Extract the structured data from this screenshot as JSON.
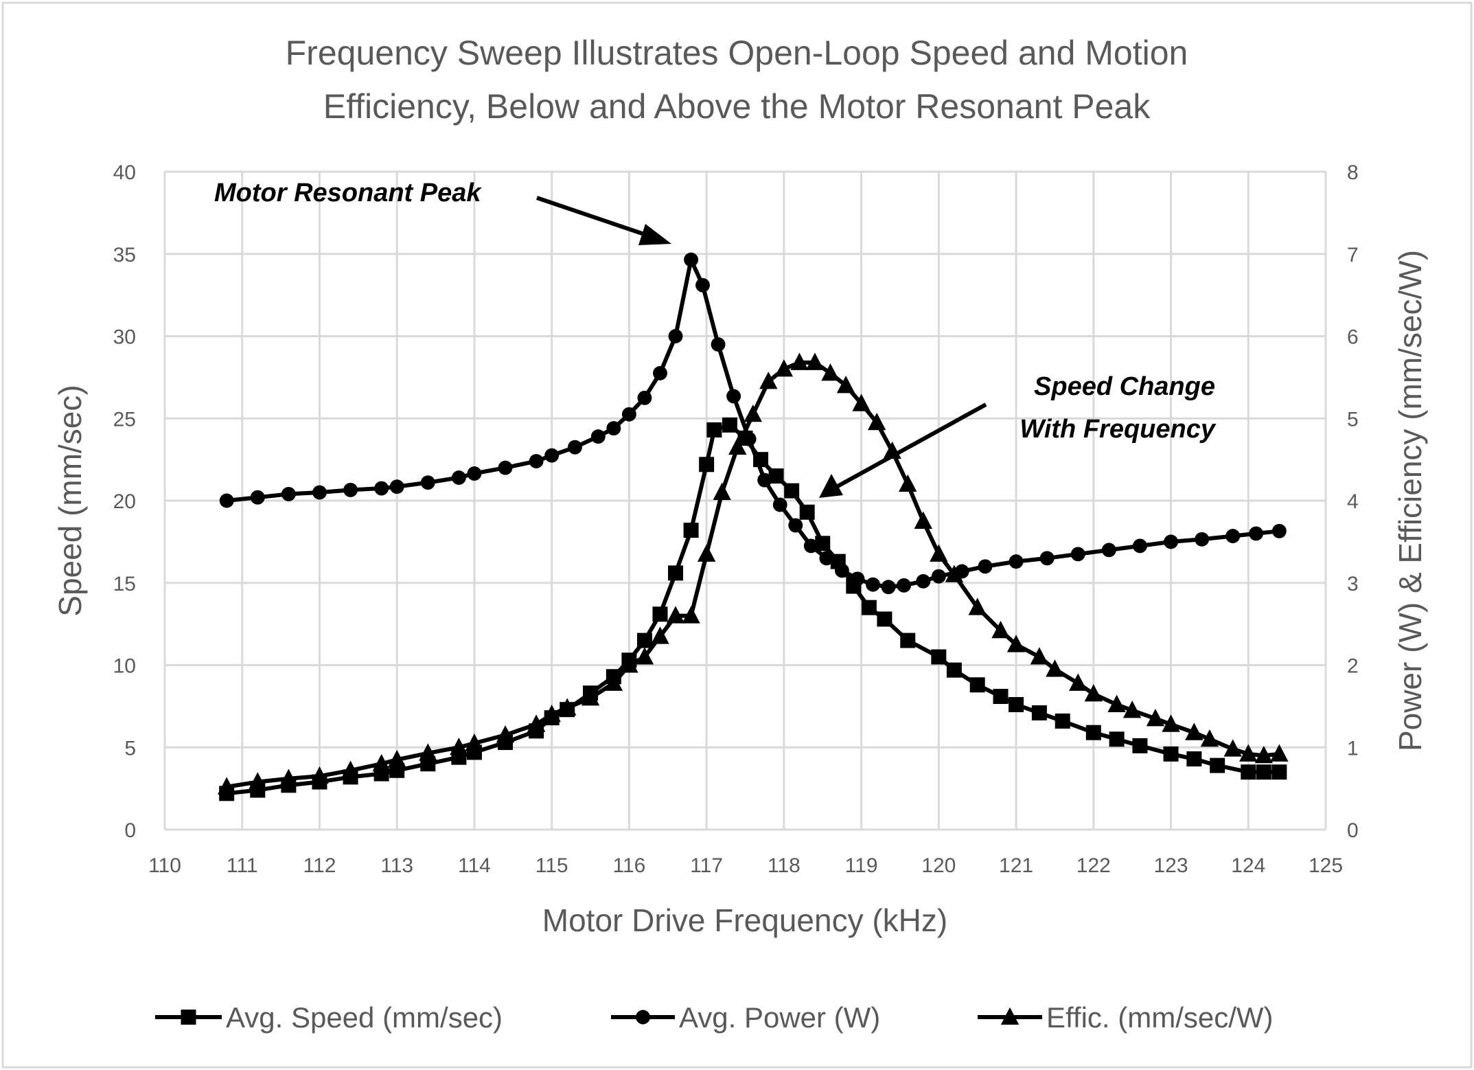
{
  "chart_data": {
    "type": "line",
    "title": [
      "Frequency Sweep Illustrates Open-Loop Speed and Motion",
      "Efficiency, Below and Above the Motor Resonant Peak"
    ],
    "xlabel": "Motor Drive Frequency (kHz)",
    "ylabel": "Speed (mm/sec)",
    "y2label": "Power (W) & Efficiency (mm/sec/W)",
    "xlim": [
      110,
      125
    ],
    "ylim": [
      0,
      40
    ],
    "y2lim": [
      0,
      8
    ],
    "x_ticks": [
      "110",
      "111",
      "112",
      "113",
      "114",
      "115",
      "116",
      "117",
      "118",
      "119",
      "120",
      "121",
      "122",
      "123",
      "124",
      "125"
    ],
    "y_ticks": [
      "0",
      "5",
      "10",
      "15",
      "20",
      "25",
      "30",
      "35",
      "40"
    ],
    "y2_ticks": [
      "0",
      "1",
      "2",
      "3",
      "4",
      "5",
      "6",
      "7",
      "8"
    ],
    "grid": true,
    "legend_position": "bottom",
    "series": [
      {
        "name": "Avg. Speed (mm/sec)",
        "marker": "square",
        "axis": "left",
        "x": [
          110.8,
          111.2,
          111.6,
          112,
          112.4,
          112.8,
          113,
          113.4,
          113.8,
          114,
          114.4,
          114.8,
          115,
          115.2,
          115.5,
          115.8,
          116,
          116.2,
          116.4,
          116.6,
          116.8,
          117,
          117.1,
          117.3,
          117.5,
          117.7,
          117.9,
          118.1,
          118.3,
          118.5,
          118.7,
          118.9,
          119.1,
          119.3,
          119.6,
          120,
          120.2,
          120.5,
          120.8,
          121,
          121.3,
          121.6,
          122,
          122.3,
          122.6,
          123,
          123.3,
          123.6,
          124,
          124.2,
          124.4
        ],
        "values": [
          2.2,
          2.4,
          2.7,
          2.9,
          3.2,
          3.4,
          3.6,
          4.0,
          4.4,
          4.7,
          5.3,
          6.0,
          6.8,
          7.3,
          8.3,
          9.3,
          10.3,
          11.5,
          13.1,
          15.6,
          18.2,
          22.2,
          24.3,
          24.6,
          23.8,
          22.5,
          21.5,
          20.6,
          19.3,
          17.4,
          16.3,
          14.8,
          13.5,
          12.8,
          11.5,
          10.5,
          9.7,
          8.8,
          8.1,
          7.6,
          7.1,
          6.6,
          5.9,
          5.5,
          5.1,
          4.6,
          4.3,
          3.9,
          3.5,
          3.5,
          3.5
        ]
      },
      {
        "name": "Avg. Power (W)",
        "marker": "circle",
        "axis": "right",
        "x": [
          110.8,
          111.2,
          111.6,
          112,
          112.4,
          112.8,
          113,
          113.4,
          113.8,
          114,
          114.4,
          114.8,
          115,
          115.3,
          115.6,
          115.8,
          116,
          116.2,
          116.4,
          116.6,
          116.8,
          116.95,
          117.15,
          117.35,
          117.55,
          117.75,
          117.95,
          118.15,
          118.35,
          118.55,
          118.75,
          118.95,
          119.15,
          119.35,
          119.55,
          119.8,
          120,
          120.3,
          120.6,
          121,
          121.4,
          121.8,
          122.2,
          122.6,
          123,
          123.4,
          123.8,
          124.1,
          124.4
        ],
        "values": [
          4.0,
          4.04,
          4.08,
          4.1,
          4.13,
          4.15,
          4.17,
          4.22,
          4.28,
          4.33,
          4.4,
          4.48,
          4.55,
          4.65,
          4.78,
          4.88,
          5.05,
          5.25,
          5.55,
          6.0,
          6.93,
          6.62,
          5.9,
          5.27,
          4.75,
          4.25,
          3.95,
          3.7,
          3.45,
          3.3,
          3.15,
          3.05,
          2.98,
          2.95,
          2.97,
          3.02,
          3.08,
          3.14,
          3.2,
          3.26,
          3.3,
          3.35,
          3.4,
          3.45,
          3.5,
          3.53,
          3.57,
          3.6,
          3.63
        ]
      },
      {
        "name": "Effic. (mm/sec/W)",
        "marker": "triangle",
        "axis": "right",
        "x": [
          110.8,
          111.2,
          111.6,
          112,
          112.4,
          112.8,
          113,
          113.4,
          113.8,
          114,
          114.4,
          114.8,
          115,
          115.2,
          115.5,
          115.8,
          116,
          116.2,
          116.4,
          116.6,
          116.8,
          117,
          117.2,
          117.4,
          117.6,
          117.8,
          118,
          118.2,
          118.4,
          118.6,
          118.8,
          119,
          119.2,
          119.4,
          119.6,
          119.8,
          120,
          120.2,
          120.5,
          120.8,
          121,
          121.3,
          121.5,
          121.8,
          122,
          122.3,
          122.5,
          122.8,
          123,
          123.3,
          123.5,
          123.8,
          124,
          124.2,
          124.4
        ],
        "values": [
          0.52,
          0.58,
          0.62,
          0.65,
          0.72,
          0.8,
          0.85,
          0.93,
          1.0,
          1.05,
          1.15,
          1.28,
          1.4,
          1.48,
          1.6,
          1.78,
          2.0,
          2.1,
          2.35,
          2.6,
          2.6,
          3.35,
          4.1,
          4.65,
          5.05,
          5.45,
          5.6,
          5.68,
          5.68,
          5.55,
          5.4,
          5.18,
          4.95,
          4.6,
          4.2,
          3.75,
          3.35,
          3.1,
          2.7,
          2.42,
          2.25,
          2.1,
          1.95,
          1.78,
          1.65,
          1.52,
          1.45,
          1.35,
          1.28,
          1.18,
          1.1,
          0.98,
          0.92,
          0.9,
          0.92
        ]
      }
    ],
    "annotations": [
      "Motor Resonant Peak",
      "Speed Change",
      "With Frequency"
    ]
  }
}
